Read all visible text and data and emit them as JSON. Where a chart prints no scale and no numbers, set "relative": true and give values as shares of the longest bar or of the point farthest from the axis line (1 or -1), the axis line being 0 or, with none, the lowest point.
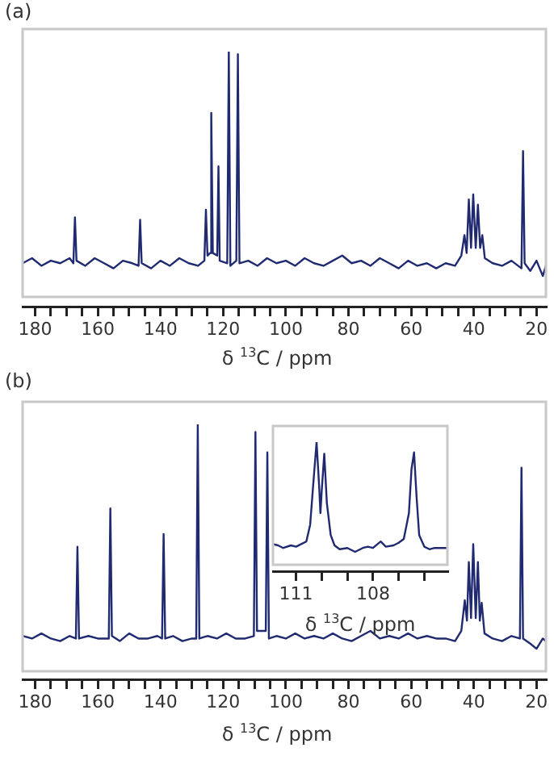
{
  "chart_data": [
    {
      "type": "line",
      "title": "(a)",
      "xlabel": "δ $^{13}$C / ppm",
      "relative": true,
      "marker": "none",
      "legend": false,
      "grid": false,
      "xlim": [
        184,
        17
      ],
      "xticks": [
        180,
        {
          "value": 175,
          "label": null
        },
        {
          "value": 170,
          "label": null
        },
        {
          "value": 165,
          "label": null
        },
        160,
        {
          "value": 155,
          "label": null
        },
        {
          "value": 150,
          "label": null
        },
        {
          "value": 145,
          "label": null
        },
        140,
        {
          "value": 135,
          "label": null
        },
        {
          "value": 130,
          "label": null
        },
        {
          "value": 125,
          "label": null
        },
        120,
        {
          "value": 115,
          "label": null
        },
        {
          "value": 110,
          "label": null
        },
        {
          "value": 105,
          "label": null
        },
        100,
        {
          "value": 95,
          "label": null
        },
        {
          "value": 90,
          "label": null
        },
        {
          "value": 85,
          "label": null
        },
        80,
        {
          "value": 75,
          "label": null
        },
        {
          "value": 70,
          "label": null
        },
        {
          "value": 65,
          "label": null
        },
        60,
        {
          "value": 55,
          "label": null
        },
        {
          "value": 50,
          "label": null
        },
        {
          "value": 45,
          "label": null
        },
        40,
        {
          "value": 35,
          "label": null
        },
        {
          "value": 30,
          "label": null
        },
        {
          "value": 25,
          "label": null
        },
        20
      ],
      "series": [
        {
          "color": "#1f2a70",
          "x": [
            184,
            181,
            178,
            175,
            172,
            169,
            167.8,
            167.3,
            166.8,
            164,
            161,
            158,
            155,
            152,
            149,
            147.0,
            146.5,
            146.0,
            143,
            140,
            137,
            134,
            131,
            128,
            126,
            125.5,
            125.0,
            124.2,
            123.8,
            123.3,
            121.9,
            121.5,
            121.1,
            118.7,
            118.2,
            117.7,
            115.8,
            115.3,
            114.8,
            112,
            109,
            106,
            103,
            100,
            97,
            94,
            91,
            88,
            85,
            82,
            79,
            76,
            73,
            70,
            67,
            64,
            61,
            58,
            55,
            52,
            49,
            46,
            44,
            43.0,
            42.3,
            41.6,
            40.9,
            40.2,
            39.4,
            38.7,
            38.0,
            37.3,
            36.5,
            34,
            31,
            28,
            24.8,
            24.3,
            23.8,
            22,
            20,
            18,
            17
          ],
          "values": [
            0.17,
            0.19,
            0.16,
            0.18,
            0.17,
            0.19,
            0.17,
            0.35,
            0.18,
            0.16,
            0.19,
            0.17,
            0.15,
            0.18,
            0.17,
            0.16,
            0.34,
            0.17,
            0.15,
            0.18,
            0.16,
            0.19,
            0.17,
            0.16,
            0.18,
            0.38,
            0.2,
            0.21,
            0.76,
            0.21,
            0.2,
            0.55,
            0.18,
            0.17,
            1,
            0.16,
            0.18,
            0.99,
            0.17,
            0.18,
            0.16,
            0.19,
            0.17,
            0.18,
            0.16,
            0.19,
            0.17,
            0.16,
            0.18,
            0.2,
            0.17,
            0.18,
            0.16,
            0.19,
            0.17,
            0.15,
            0.18,
            0.16,
            0.17,
            0.15,
            0.17,
            0.16,
            0.2,
            0.28,
            0.21,
            0.42,
            0.23,
            0.44,
            0.23,
            0.4,
            0.23,
            0.28,
            0.19,
            0.17,
            0.16,
            0.18,
            0.15,
            0.61,
            0.17,
            0.14,
            0.18,
            0.12,
            0.16
          ]
        }
      ]
    },
    {
      "type": "line",
      "title": "(b)",
      "xlabel": "δ $^{13}$C / ppm",
      "relative": true,
      "marker": "none",
      "legend": false,
      "grid": false,
      "xlim": [
        184,
        17
      ],
      "xticks": [
        180,
        {
          "value": 175,
          "label": null
        },
        {
          "value": 170,
          "label": null
        },
        {
          "value": 165,
          "label": null
        },
        160,
        {
          "value": 155,
          "label": null
        },
        {
          "value": 150,
          "label": null
        },
        {
          "value": 145,
          "label": null
        },
        140,
        {
          "value": 135,
          "label": null
        },
        {
          "value": 130,
          "label": null
        },
        {
          "value": 125,
          "label": null
        },
        120,
        {
          "value": 115,
          "label": null
        },
        {
          "value": 110,
          "label": null
        },
        {
          "value": 105,
          "label": null
        },
        100,
        {
          "value": 95,
          "label": null
        },
        {
          "value": 90,
          "label": null
        },
        {
          "value": 85,
          "label": null
        },
        80,
        {
          "value": 75,
          "label": null
        },
        {
          "value": 70,
          "label": null
        },
        {
          "value": 65,
          "label": null
        },
        60,
        {
          "value": 55,
          "label": null
        },
        {
          "value": 50,
          "label": null
        },
        {
          "value": 45,
          "label": null
        },
        40,
        {
          "value": 35,
          "label": null
        },
        {
          "value": 30,
          "label": null
        },
        {
          "value": 25,
          "label": null
        },
        20
      ],
      "series": [
        {
          "color": "#1f2a70",
          "x": [
            184,
            181,
            178,
            175,
            172,
            169,
            167.0,
            166.5,
            166.0,
            163,
            160,
            156.5,
            156.0,
            155.5,
            153,
            150,
            147,
            144,
            141,
            139.5,
            139.0,
            138.5,
            136,
            133,
            130,
            128.6,
            128.1,
            127.6,
            125,
            122,
            119,
            116,
            113,
            110.2,
            109.7,
            109.2,
            106.4,
            105.9,
            105.4,
            103,
            100,
            97,
            94,
            91,
            88,
            85,
            82,
            79,
            76,
            73,
            70,
            67,
            64,
            61,
            58,
            55,
            52,
            49,
            46,
            44,
            42.9,
            42.2,
            41.6,
            40.9,
            40.2,
            39.4,
            38.7,
            38.1,
            37.5,
            36.6,
            34,
            31,
            28,
            25.3,
            24.8,
            24.3,
            22,
            20,
            18,
            17
          ],
          "values": [
            0.17,
            0.16,
            0.18,
            0.16,
            0.15,
            0.17,
            0.16,
            0.52,
            0.16,
            0.17,
            0.16,
            0.16,
            0.67,
            0.17,
            0.15,
            0.18,
            0.16,
            0.16,
            0.17,
            0.16,
            0.57,
            0.16,
            0.17,
            0.15,
            0.16,
            0.16,
            1,
            0.16,
            0.17,
            0.16,
            0.18,
            0.16,
            0.16,
            0.17,
            0.97,
            0.19,
            0.19,
            0.89,
            0.16,
            0.17,
            0.16,
            0.18,
            0.16,
            0.17,
            0.16,
            0.18,
            0.16,
            0.15,
            0.17,
            0.19,
            0.16,
            0.17,
            0.16,
            0.18,
            0.16,
            0.17,
            0.16,
            0.16,
            0.15,
            0.19,
            0.31,
            0.23,
            0.46,
            0.24,
            0.53,
            0.24,
            0.46,
            0.23,
            0.3,
            0.18,
            0.16,
            0.15,
            0.17,
            0.16,
            0.83,
            0.16,
            0.14,
            0.12,
            0.16,
            0.15
          ]
        }
      ]
    },
    {
      "type": "line",
      "xlabel": "δ $^{13}$C / ppm",
      "relative": true,
      "marker": "none",
      "legend": false,
      "grid": false,
      "xlim": [
        111.9,
        105.1
      ],
      "xticks": [
        111,
        {
          "value": 110,
          "label": null
        },
        {
          "value": 109,
          "label": null
        },
        108,
        {
          "value": 107,
          "label": null
        },
        {
          "value": 106,
          "label": null
        }
      ],
      "series": [
        {
          "color": "#1f2a70",
          "x": [
            111.9,
            111.7,
            111.5,
            111.2,
            111.0,
            110.8,
            110.6,
            110.45,
            110.3,
            110.2,
            110.1,
            110.05,
            110.0,
            109.9,
            109.8,
            109.65,
            109.5,
            109.3,
            109.0,
            108.7,
            108.4,
            108.2,
            108.0,
            107.7,
            107.5,
            107.2,
            107.0,
            106.8,
            106.6,
            106.5,
            106.4,
            106.3,
            106.2,
            106.0,
            105.8,
            105.6,
            105.4,
            105.1
          ],
          "values": [
            0.21,
            0.2,
            0.18,
            0.2,
            0.19,
            0.21,
            0.23,
            0.36,
            0.75,
            1,
            0.66,
            0.45,
            0.62,
            0.91,
            0.53,
            0.28,
            0.2,
            0.17,
            0.18,
            0.15,
            0.18,
            0.19,
            0.18,
            0.23,
            0.19,
            0.2,
            0.22,
            0.25,
            0.45,
            0.79,
            0.92,
            0.57,
            0.28,
            0.19,
            0.17,
            0.18,
            0.18,
            0.18
          ]
        }
      ]
    }
  ]
}
